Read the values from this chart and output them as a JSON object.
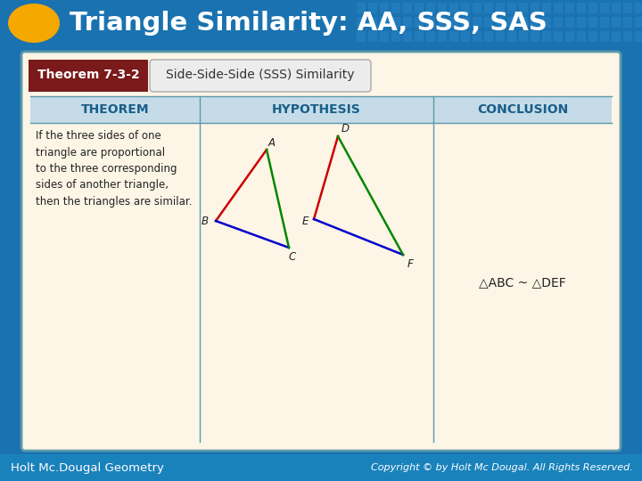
{
  "title": "Triangle Similarity: AA, SSS, SAS",
  "bg_color": "#1a72b0",
  "header_bg": "#1a72b0",
  "title_color": "#ffffff",
  "oval_color": "#f5a800",
  "theorem_label": "Theorem 7-3-2",
  "theorem_label_bg": "#7a1a1a",
  "theorem_title": "Side-Side-Side (SSS) Similarity",
  "table_header_bg": "#c5dce8",
  "table_body_bg": "#fdf5e6",
  "table_border": "#5a9aaa",
  "outer_border": "#5a9aaa",
  "col_headers": [
    "THEOREM",
    "HYPOTHESIS",
    "CONCLUSION"
  ],
  "theorem_text": "If the three sides of one\ntriangle are proportional\nto the three corresponding\nsides of another triangle,\nthen the triangles are similar.",
  "conclusion_text": "△ABC ~ △DEF",
  "footer_left": "Holt Mc.Dougal Geometry",
  "footer_right": "Copyright © by Holt Mc Dougal. All Rights Reserved.",
  "footer_bg": "#1a82bb",
  "grid_color": "#2a85c5",
  "tri1_edge_colors": [
    "#cc0000",
    "#008800",
    "#0000cc"
  ],
  "tri2_edge_colors": [
    "#cc0000",
    "#008800",
    "#0000cc"
  ]
}
